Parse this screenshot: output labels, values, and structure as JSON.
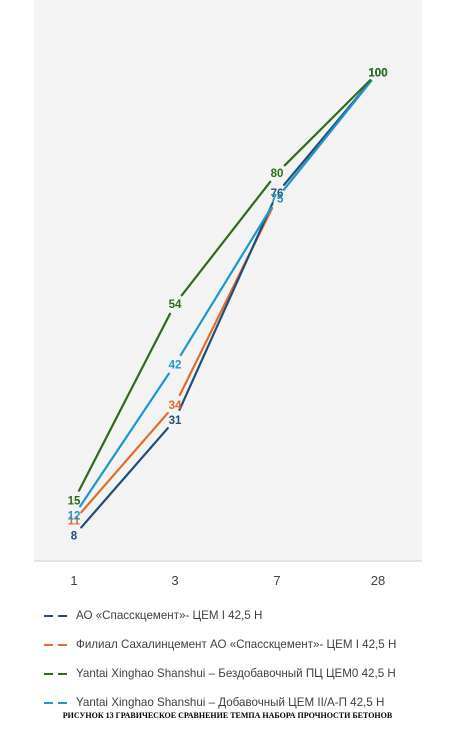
{
  "chart_data": {
    "type": "line",
    "categories": [
      "1",
      "3",
      "7",
      "28"
    ],
    "ylim": [
      0,
      110
    ],
    "grid": false,
    "legend_position": "bottom",
    "series": [
      {
        "name": "АО «Спасскцемент»- ЦЕМ I 42,5 Н",
        "color": "#1f4e79",
        "values": [
          8,
          31,
          76,
          100
        ]
      },
      {
        "name": "Филиал Сахалинцемент АО «Спасскцемент»- ЦЕМ I  42,5 Н",
        "color": "#e46c2a",
        "values": [
          11,
          34,
          75,
          100
        ]
      },
      {
        "name": "Yantai Xinghao Shanshui – Бездобавочный ПЦ ЦЕМ0 42,5 Н",
        "color": "#2e6b1a",
        "values": [
          15,
          54,
          80,
          100
        ]
      },
      {
        "name": "Yantai Xinghao Shanshui – Добавочный ЦЕМ II/А-П 42,5 Н",
        "color": "#1e98cc",
        "values": [
          12,
          42,
          75,
          100
        ]
      }
    ]
  },
  "caption": "РИСУНОК 13 ГРАВИЧЕСКОЕ СРАВНЕНИЕ ТЕМПА НАБОРА ПРОЧНОСТИ БЕТОНОВ"
}
